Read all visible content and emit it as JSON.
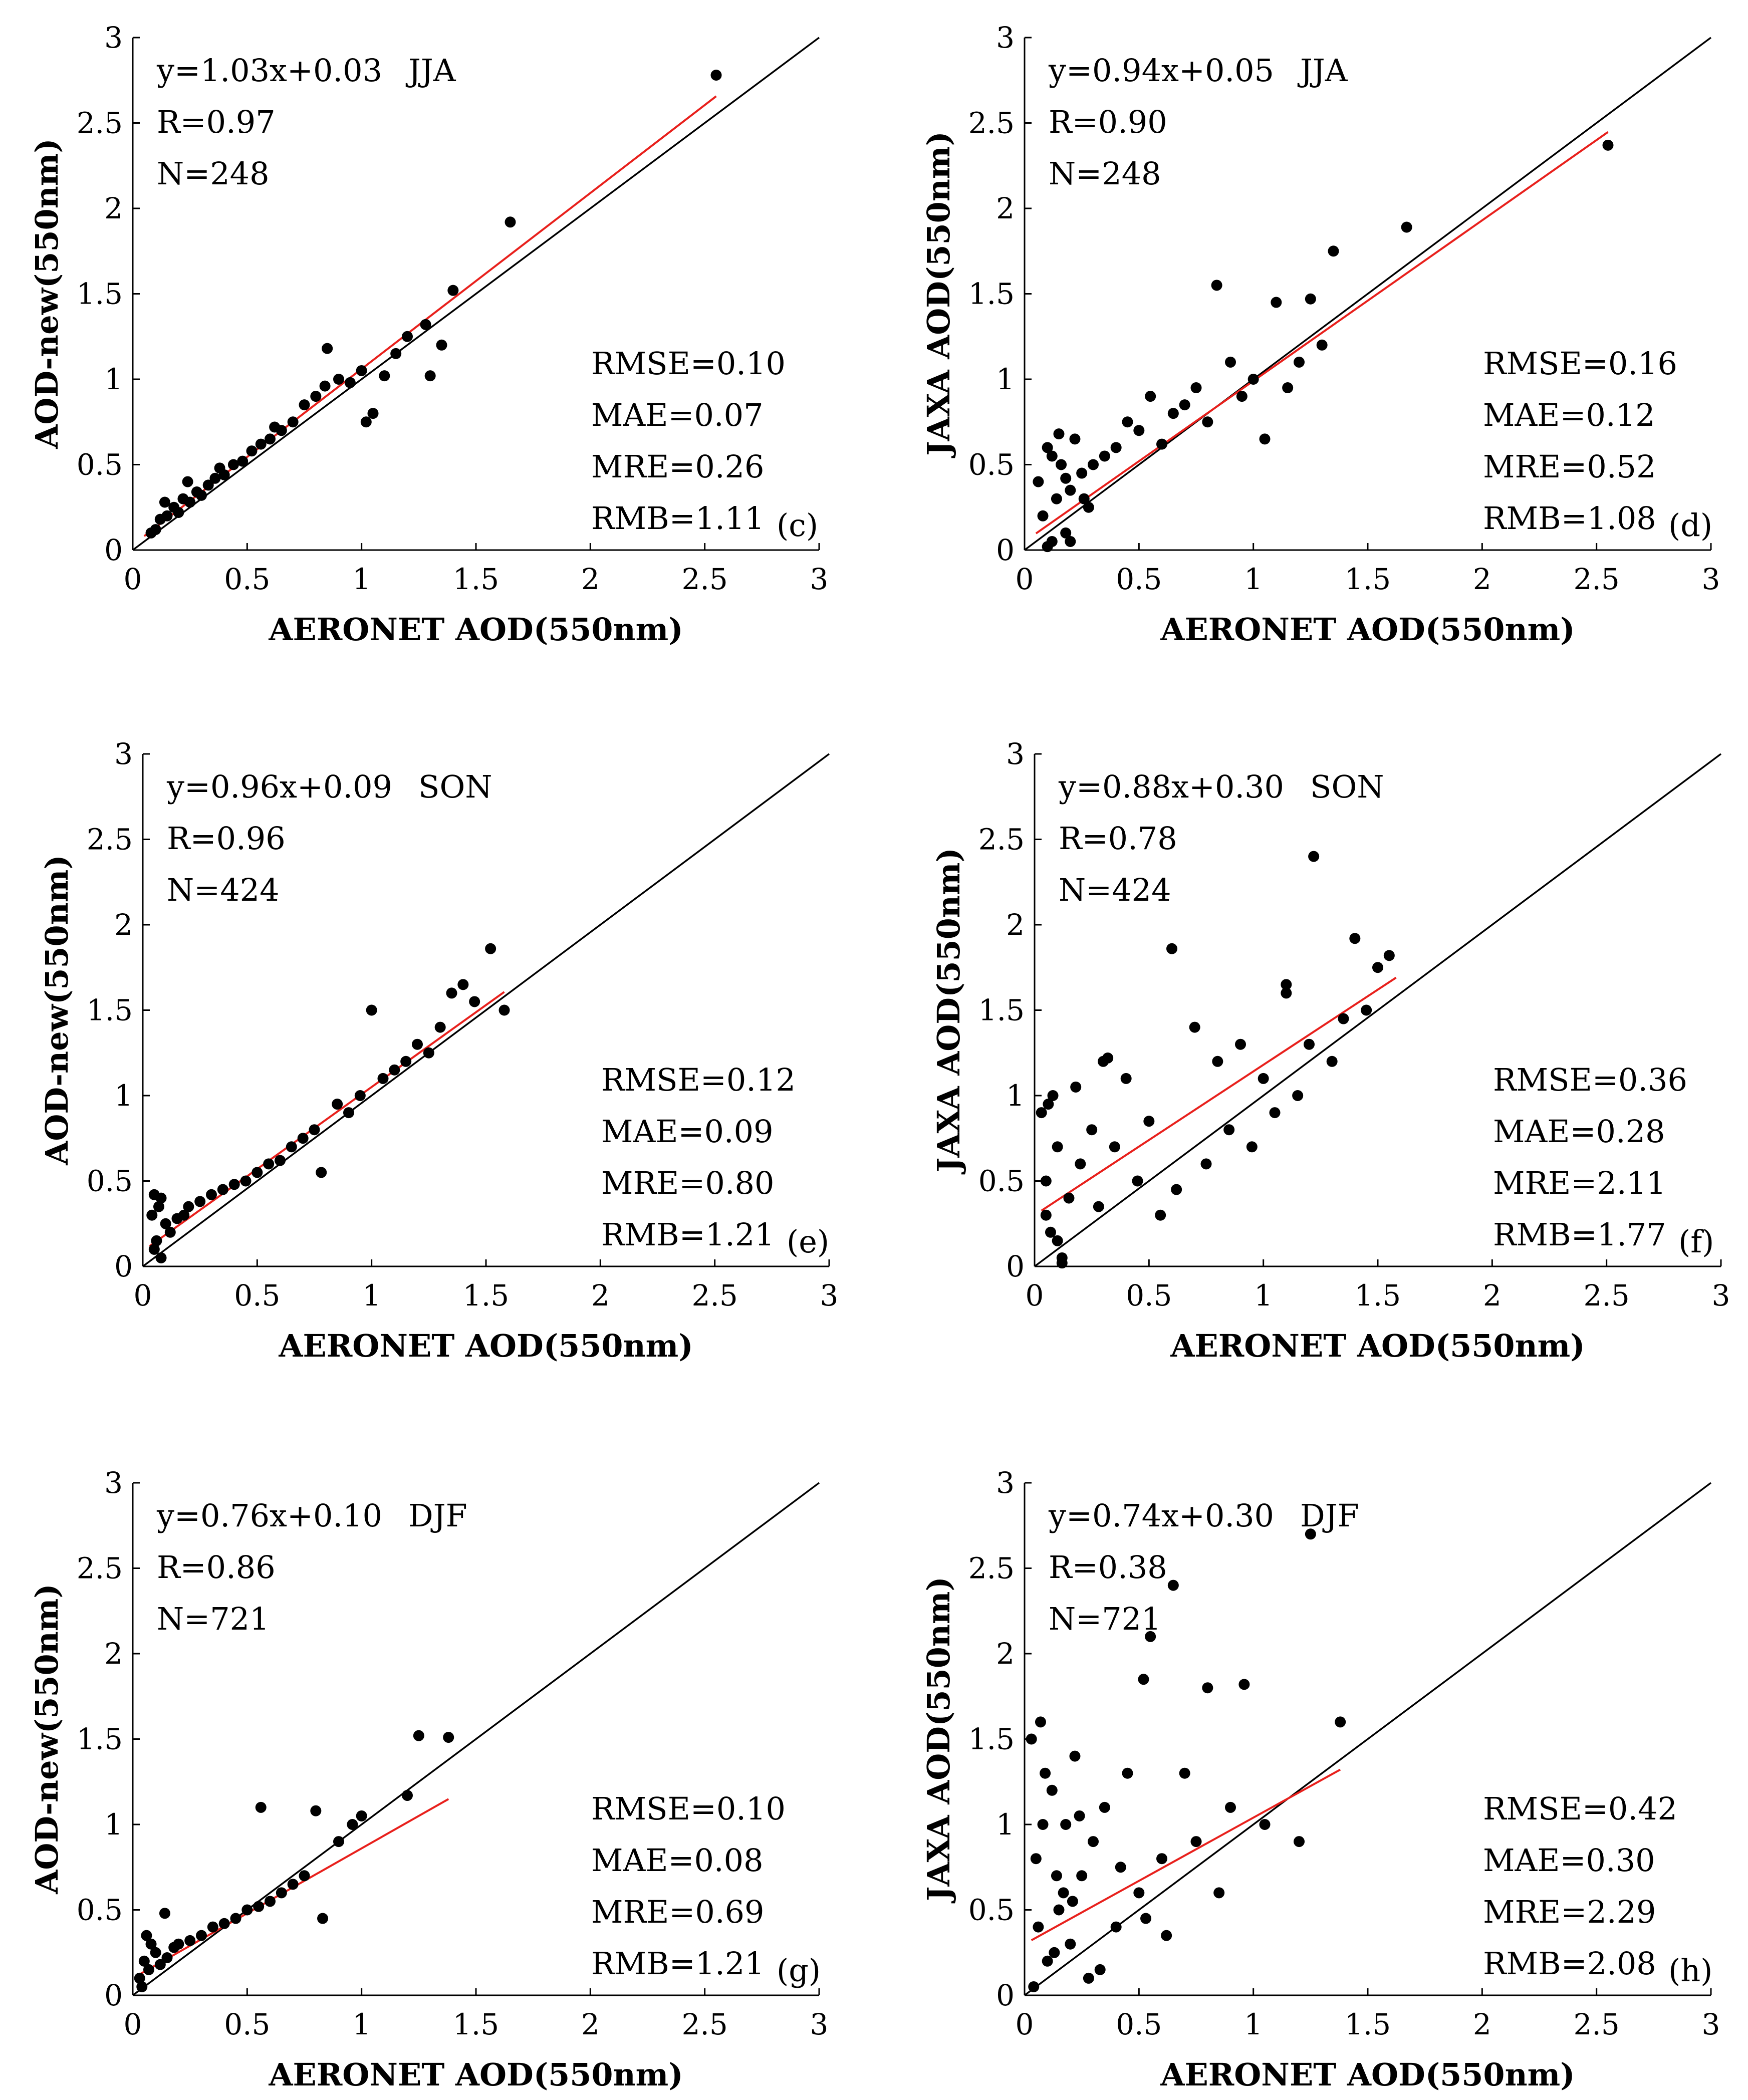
{
  "chart_data": [
    {
      "type": "scatter",
      "panel": "(c)",
      "season": "JJA",
      "xlabel": "AERONET AOD(550nm)",
      "ylabel": "AOD-new(550nm)",
      "xlim": [
        0,
        3
      ],
      "ylim": [
        0,
        3
      ],
      "xticks": [
        "0",
        "0.5",
        "1",
        "1.5",
        "2",
        "2.5",
        "3"
      ],
      "yticks": [
        "0",
        "0.5",
        "1",
        "1.5",
        "2",
        "2.5",
        "3"
      ],
      "equation": "y=1.03x+0.03",
      "R": "R=0.97",
      "N": "N=248",
      "metrics": [
        "RMSE=0.10",
        "MAE=0.07",
        "MRE=0.26",
        "RMB=1.11"
      ],
      "fit": {
        "slope": 1.03,
        "intercept": 0.03,
        "x_range": [
          0.05,
          2.55
        ]
      },
      "x": [
        0.08,
        0.1,
        0.12,
        0.15,
        0.18,
        0.2,
        0.22,
        0.25,
        0.28,
        0.3,
        0.33,
        0.36,
        0.4,
        0.44,
        0.48,
        0.52,
        0.56,
        0.6,
        0.65,
        0.7,
        0.75,
        0.8,
        0.84,
        0.9,
        0.95,
        1.0,
        1.05,
        1.1,
        1.15,
        1.2,
        1.28,
        1.35,
        1.4,
        1.65,
        2.55,
        0.14,
        0.24,
        0.38,
        0.62,
        0.85,
        1.02,
        1.3
      ],
      "y": [
        0.1,
        0.12,
        0.18,
        0.2,
        0.25,
        0.22,
        0.3,
        0.28,
        0.34,
        0.32,
        0.38,
        0.42,
        0.44,
        0.5,
        0.52,
        0.58,
        0.62,
        0.65,
        0.7,
        0.75,
        0.85,
        0.9,
        0.96,
        1.0,
        0.98,
        1.05,
        0.8,
        1.02,
        1.15,
        1.25,
        1.32,
        1.2,
        1.52,
        1.92,
        2.78,
        0.28,
        0.4,
        0.48,
        0.72,
        1.18,
        0.75,
        1.02
      ]
    },
    {
      "type": "scatter",
      "panel": "(d)",
      "season": "JJA",
      "xlabel": "AERONET AOD(550nm)",
      "ylabel": "JAXA AOD(550nm)",
      "xlim": [
        0,
        3
      ],
      "ylim": [
        0,
        3
      ],
      "xticks": [
        "0",
        "0.5",
        "1",
        "1.5",
        "2",
        "2.5",
        "3"
      ],
      "yticks": [
        "0",
        "0.5",
        "1",
        "1.5",
        "2",
        "2.5",
        "3"
      ],
      "equation": "y=0.94x+0.05",
      "R": "R=0.90",
      "N": "N=248",
      "metrics": [
        "RMSE=0.16",
        "MAE=0.12",
        "MRE=0.52",
        "RMB=1.08"
      ],
      "fit": {
        "slope": 0.94,
        "intercept": 0.05,
        "x_range": [
          0.05,
          2.55
        ]
      },
      "x": [
        0.06,
        0.08,
        0.1,
        0.12,
        0.14,
        0.16,
        0.18,
        0.2,
        0.22,
        0.25,
        0.28,
        0.3,
        0.35,
        0.4,
        0.45,
        0.5,
        0.55,
        0.6,
        0.65,
        0.7,
        0.75,
        0.8,
        0.84,
        0.9,
        0.95,
        1.0,
        1.05,
        1.1,
        1.15,
        1.2,
        1.25,
        1.3,
        1.35,
        1.67,
        2.55,
        0.1,
        0.15,
        0.2,
        0.26,
        0.12,
        0.18
      ],
      "y": [
        0.4,
        0.2,
        0.6,
        0.05,
        0.3,
        0.5,
        0.1,
        0.35,
        0.65,
        0.45,
        0.25,
        0.5,
        0.55,
        0.6,
        0.75,
        0.7,
        0.9,
        0.62,
        0.8,
        0.85,
        0.95,
        0.75,
        1.55,
        1.1,
        0.9,
        1.0,
        0.65,
        1.45,
        0.95,
        1.1,
        1.47,
        1.2,
        1.75,
        1.89,
        2.37,
        0.02,
        0.68,
        0.05,
        0.3,
        0.55,
        0.42
      ]
    },
    {
      "type": "scatter",
      "panel": "(e)",
      "season": "SON",
      "xlabel": "AERONET AOD(550nm)",
      "ylabel": "AOD-new(550nm)",
      "xlim": [
        0,
        3
      ],
      "ylim": [
        0,
        3
      ],
      "xticks": [
        "0",
        "0.5",
        "1",
        "1.5",
        "2",
        "2.5",
        "3"
      ],
      "yticks": [
        "0",
        "0.5",
        "1",
        "1.5",
        "2",
        "2.5",
        "3"
      ],
      "equation": "y=0.96x+0.09",
      "R": "R=0.96",
      "N": "N=424",
      "metrics": [
        "RMSE=0.12",
        "MAE=0.09",
        "MRE=0.80",
        "RMB=1.21"
      ],
      "fit": {
        "slope": 0.96,
        "intercept": 0.09,
        "x_range": [
          0.03,
          1.58
        ]
      },
      "x": [
        0.04,
        0.06,
        0.08,
        0.1,
        0.05,
        0.07,
        0.12,
        0.15,
        0.18,
        0.2,
        0.25,
        0.3,
        0.35,
        0.4,
        0.45,
        0.5,
        0.55,
        0.6,
        0.65,
        0.7,
        0.75,
        0.78,
        0.85,
        0.9,
        0.95,
        1.0,
        1.05,
        1.1,
        1.15,
        1.2,
        1.25,
        1.3,
        1.35,
        1.4,
        1.45,
        1.52,
        1.58,
        0.05,
        0.08
      ],
      "y": [
        0.3,
        0.15,
        0.4,
        0.25,
        0.1,
        0.35,
        0.2,
        0.28,
        0.3,
        0.35,
        0.38,
        0.42,
        0.45,
        0.48,
        0.5,
        0.55,
        0.6,
        0.62,
        0.7,
        0.75,
        0.8,
        0.55,
        0.95,
        0.9,
        1.0,
        1.5,
        1.1,
        1.15,
        1.2,
        1.3,
        1.25,
        1.4,
        1.6,
        1.65,
        1.55,
        1.86,
        1.5,
        0.42,
        0.05
      ]
    },
    {
      "type": "scatter",
      "panel": "(f)",
      "season": "SON",
      "xlabel": "AERONET AOD(550nm)",
      "ylabel": "JAXA AOD(550nm)",
      "xlim": [
        0,
        3
      ],
      "ylim": [
        0,
        3
      ],
      "xticks": [
        "0",
        "0.5",
        "1",
        "1.5",
        "2",
        "2.5",
        "3"
      ],
      "yticks": [
        "0",
        "0.5",
        "1",
        "1.5",
        "2",
        "2.5",
        "3"
      ],
      "equation": "y=0.88x+0.30",
      "R": "R=0.78",
      "N": "N=424",
      "metrics": [
        "RMSE=0.36",
        "MAE=0.28",
        "MRE=2.11",
        "RMB=1.77"
      ],
      "fit": {
        "slope": 0.88,
        "intercept": 0.3,
        "x_range": [
          0.03,
          1.58
        ]
      },
      "x": [
        0.03,
        0.05,
        0.07,
        0.1,
        0.12,
        0.05,
        0.08,
        0.15,
        0.2,
        0.25,
        0.3,
        0.28,
        0.35,
        0.4,
        0.45,
        0.5,
        0.55,
        0.6,
        0.62,
        0.7,
        0.75,
        0.8,
        0.85,
        0.9,
        0.95,
        1.0,
        1.05,
        1.1,
        1.15,
        1.2,
        1.22,
        1.3,
        1.35,
        1.4,
        1.45,
        1.5,
        1.55,
        0.12,
        0.06,
        0.1,
        0.18,
        0.32,
        1.1
      ],
      "y": [
        0.9,
        0.5,
        0.2,
        0.7,
        0.05,
        0.3,
        1.0,
        0.4,
        0.6,
        0.8,
        1.2,
        0.35,
        0.7,
        1.1,
        0.5,
        0.85,
        0.3,
        1.86,
        0.45,
        1.4,
        0.6,
        1.2,
        0.8,
        1.3,
        0.7,
        1.1,
        0.9,
        1.6,
        1.0,
        1.3,
        2.4,
        1.2,
        1.45,
        1.92,
        1.5,
        1.75,
        1.82,
        0.02,
        0.95,
        0.15,
        1.05,
        1.22,
        1.65
      ]
    },
    {
      "type": "scatter",
      "panel": "(g)",
      "season": "DJF",
      "xlabel": "AERONET AOD(550nm)",
      "ylabel": "AOD-new(550nm)",
      "xlim": [
        0,
        3
      ],
      "ylim": [
        0,
        3
      ],
      "xticks": [
        "0",
        "0.5",
        "1",
        "1.5",
        "2",
        "2.5",
        "3"
      ],
      "yticks": [
        "0",
        "0.5",
        "1",
        "1.5",
        "2",
        "2.5",
        "3"
      ],
      "equation": "y=0.76x+0.10",
      "R": "R=0.86",
      "N": "N=721",
      "metrics": [
        "RMSE=0.10",
        "MAE=0.08",
        "MRE=0.69",
        "RMB=1.21"
      ],
      "fit": {
        "slope": 0.76,
        "intercept": 0.1,
        "x_range": [
          0.03,
          1.38
        ]
      },
      "x": [
        0.03,
        0.05,
        0.07,
        0.1,
        0.12,
        0.04,
        0.08,
        0.15,
        0.18,
        0.2,
        0.25,
        0.3,
        0.35,
        0.4,
        0.45,
        0.5,
        0.55,
        0.56,
        0.6,
        0.65,
        0.7,
        0.75,
        0.8,
        0.83,
        0.9,
        0.96,
        1.0,
        1.2,
        1.25,
        1.38,
        0.06,
        0.14
      ],
      "y": [
        0.1,
        0.2,
        0.15,
        0.25,
        0.18,
        0.05,
        0.3,
        0.22,
        0.28,
        0.3,
        0.32,
        0.35,
        0.4,
        0.42,
        0.45,
        0.5,
        0.52,
        1.1,
        0.55,
        0.6,
        0.65,
        0.7,
        1.08,
        0.45,
        0.9,
        1.0,
        1.05,
        1.17,
        1.52,
        1.51,
        0.35,
        0.48
      ]
    },
    {
      "type": "scatter",
      "panel": "(h)",
      "season": "DJF",
      "xlabel": "AERONET AOD(550nm)",
      "ylabel": "JAXA AOD(550nm)",
      "xlim": [
        0,
        3
      ],
      "ylim": [
        0,
        3
      ],
      "xticks": [
        "0",
        "0.5",
        "1",
        "1.5",
        "2",
        "2.5",
        "3"
      ],
      "yticks": [
        "0",
        "0.5",
        "1",
        "1.5",
        "2",
        "2.5",
        "3"
      ],
      "equation": "y=0.74x+0.30",
      "R": "R=0.38",
      "N": "N=721",
      "metrics": [
        "RMSE=0.42",
        "MAE=0.30",
        "MRE=2.29",
        "RMB=2.08"
      ],
      "fit": {
        "slope": 0.74,
        "intercept": 0.3,
        "x_range": [
          0.03,
          1.38
        ]
      },
      "x": [
        0.03,
        0.05,
        0.07,
        0.1,
        0.12,
        0.15,
        0.18,
        0.2,
        0.22,
        0.25,
        0.28,
        0.3,
        0.35,
        0.4,
        0.45,
        0.5,
        0.52,
        0.55,
        0.6,
        0.65,
        0.7,
        0.75,
        0.8,
        0.85,
        0.9,
        0.96,
        1.05,
        1.2,
        1.25,
        1.38,
        0.04,
        0.06,
        0.09,
        0.13,
        0.17,
        0.24,
        0.33,
        0.42,
        0.53,
        0.62,
        0.08,
        0.14,
        0.21
      ],
      "y": [
        1.5,
        0.8,
        1.6,
        0.2,
        1.2,
        0.5,
        1.0,
        0.3,
        1.4,
        0.7,
        0.1,
        0.9,
        1.1,
        0.4,
        1.3,
        0.6,
        1.85,
        2.1,
        0.8,
        2.4,
        1.3,
        0.9,
        1.8,
        0.6,
        1.1,
        1.82,
        1.0,
        0.9,
        2.7,
        1.6,
        0.05,
        0.4,
        1.3,
        0.25,
        0.6,
        1.05,
        0.15,
        0.75,
        0.45,
        0.35,
        1.0,
        0.7,
        0.55
      ]
    }
  ]
}
